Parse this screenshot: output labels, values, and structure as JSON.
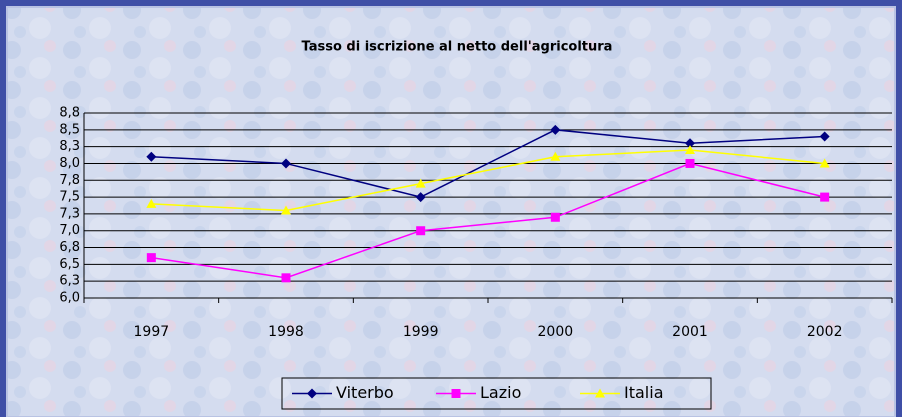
{
  "chart_data": {
    "type": "line",
    "title": "Tasso di iscrizione al netto dell'agricoltura",
    "categories": [
      "1997",
      "1998",
      "1999",
      "2000",
      "2001",
      "2002"
    ],
    "series": [
      {
        "name": "Viterbo",
        "color": "#000080",
        "marker": "diamond",
        "values": [
          8.1,
          8.0,
          7.5,
          8.5,
          8.3,
          8.4
        ]
      },
      {
        "name": "Lazio",
        "color": "#ff00ff",
        "marker": "square",
        "values": [
          6.6,
          6.3,
          7.0,
          7.2,
          8.0,
          7.5
        ]
      },
      {
        "name": "Italia",
        "color": "#ffff00",
        "marker": "triangle",
        "values": [
          7.4,
          7.3,
          7.7,
          8.1,
          8.2,
          8.0
        ]
      }
    ],
    "ylim": [
      6.0,
      8.75
    ],
    "yticks": [
      {
        "value": 6.0,
        "label": "6,0"
      },
      {
        "value": 6.25,
        "label": "6,3"
      },
      {
        "value": 6.5,
        "label": "6,5"
      },
      {
        "value": 6.75,
        "label": "6,8"
      },
      {
        "value": 7.0,
        "label": "7,0"
      },
      {
        "value": 7.25,
        "label": "7,3"
      },
      {
        "value": 7.5,
        "label": "7,5"
      },
      {
        "value": 7.75,
        "label": "7,8"
      },
      {
        "value": 8.0,
        "label": "8,0"
      },
      {
        "value": 8.25,
        "label": "8,3"
      },
      {
        "value": 8.5,
        "label": "8,5"
      },
      {
        "value": 8.75,
        "label": "8,8"
      }
    ],
    "grid": true,
    "legend": "bottom"
  }
}
